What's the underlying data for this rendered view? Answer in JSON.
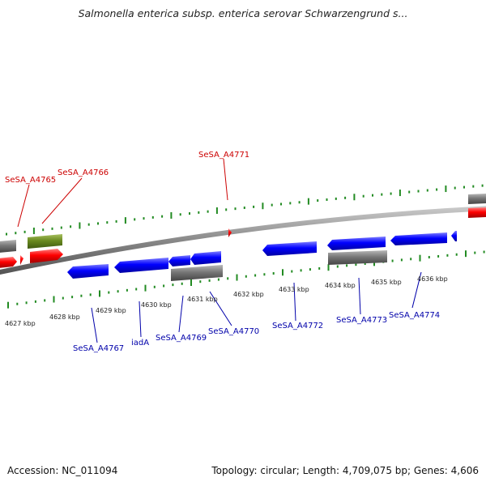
{
  "title": "Salmonella enterica subsp. enterica serovar Schwarzengrund s...",
  "footer": {
    "accession": "Accession: NC_011094",
    "summary": "Topology: circular; Length: 4,709,075 bp; Genes: 4,606"
  },
  "colors": {
    "forward_gene": "#ff0000",
    "reverse_gene": "#0000ff",
    "misc_feature": "#7a7a7a",
    "other_feature": "#6a8a20",
    "tick": "#228b22",
    "backbone": "#8a8a8a",
    "forward_label": "#cc0000",
    "reverse_label": "#0000aa",
    "kbp_label": "#222222"
  },
  "kbp_labels": [
    "4627 kbp",
    "4628 kbp",
    "4629 kbp",
    "4630 kbp",
    "4631 kbp",
    "4632 kbp",
    "4633 kbp",
    "4634 kbp",
    "4635 kbp",
    "4636 kbp"
  ],
  "gene_labels": {
    "forward": [
      "SeSA_A4765",
      "SeSA_A4766",
      "SeSA_A4771"
    ],
    "reverse": [
      "SeSA_A4767",
      "iadA",
      "SeSA_A4769",
      "SeSA_A4770",
      "SeSA_A4772",
      "SeSA_A4773",
      "SeSA_A4774"
    ]
  }
}
